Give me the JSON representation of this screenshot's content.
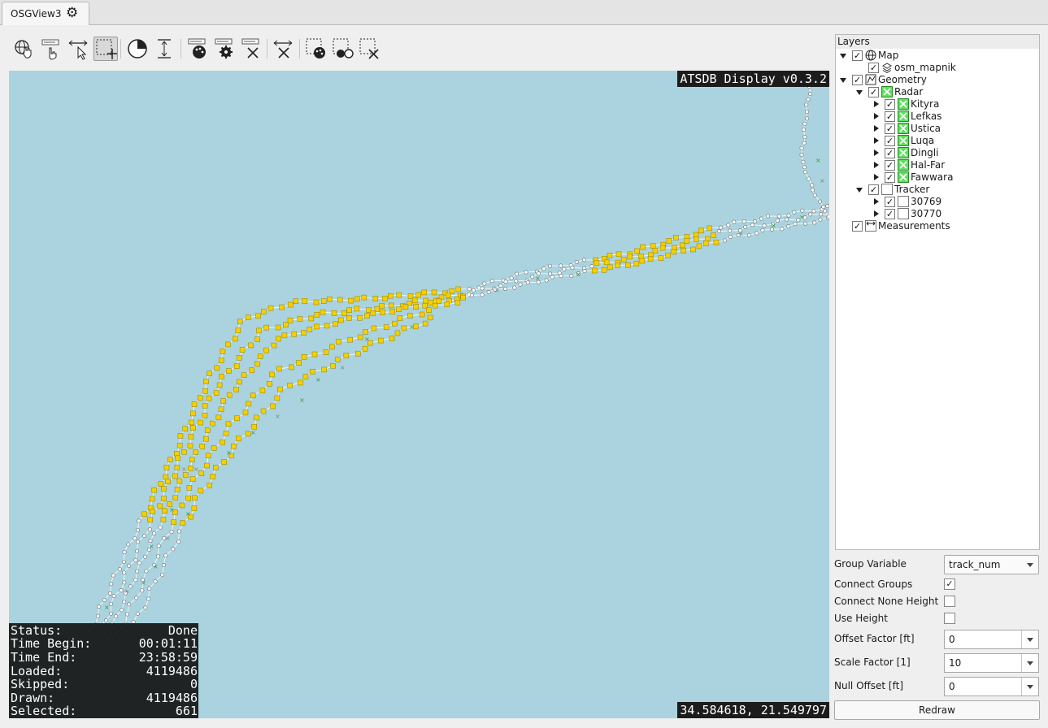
{
  "window": {
    "tab_label": "OSGView3"
  },
  "toolbar": {
    "tools": [
      {
        "name": "navigate-tool-button",
        "icon": "globe-hand-icon",
        "active": false
      },
      {
        "name": "label-tool-button",
        "icon": "label-hand-icon",
        "active": false
      },
      {
        "name": "measure-select-tool-button",
        "icon": "measure-pointer-icon",
        "active": false
      },
      {
        "name": "select-rect-add-tool-button",
        "icon": "selection-add-icon",
        "active": true
      },
      {
        "name": "time-filter-button",
        "icon": "clock-pie-icon",
        "active": false
      },
      {
        "name": "height-filter-button",
        "icon": "height-arrows-icon",
        "active": false
      },
      {
        "name": "label-color-button",
        "icon": "label-palette-icon",
        "active": false
      },
      {
        "name": "label-settings-button",
        "icon": "label-gear-icon",
        "active": false
      },
      {
        "name": "label-clear-button",
        "icon": "label-clear-icon",
        "active": false
      },
      {
        "name": "measure-clear-button",
        "icon": "measure-clear-icon",
        "active": false
      },
      {
        "name": "selection-color-button",
        "icon": "selection-palette-icon",
        "active": false
      },
      {
        "name": "selection-invert-button",
        "icon": "selection-invert-icon",
        "active": false
      },
      {
        "name": "selection-clear-button",
        "icon": "selection-clear-icon",
        "active": false
      }
    ]
  },
  "map": {
    "banner": "ATSDB Display v0.3.2",
    "coordinates": "34.584618, 21.549797",
    "colors": {
      "water": "#aad3df",
      "track_white": "#ffffff",
      "track_selected": "#f5d000",
      "plot_green": "#3a9a4a"
    }
  },
  "stats": [
    {
      "label": "Status:",
      "value": "Done"
    },
    {
      "label": "Time Begin:",
      "value": "00:01:11"
    },
    {
      "label": "Time End:",
      "value": "23:58:59"
    },
    {
      "label": "Loaded:",
      "value": "4119486"
    },
    {
      "label": "Skipped:",
      "value": "0"
    },
    {
      "label": "Drawn:",
      "value": "4119486"
    },
    {
      "label": "Selected:",
      "value": "661"
    }
  ],
  "layers": {
    "title": "Layers",
    "tree": [
      {
        "label": "Map",
        "depth": 0,
        "expander": "down",
        "checked": true,
        "icon": "globe-icon"
      },
      {
        "label": "osm_mapnik",
        "depth": 1,
        "expander": "none",
        "checked": true,
        "icon": "layers-icon"
      },
      {
        "label": "Geometry",
        "depth": 0,
        "expander": "down",
        "checked": true,
        "icon": "geometry-icon"
      },
      {
        "label": "Radar",
        "depth": 1,
        "expander": "down",
        "checked": true,
        "icon": "green-cross-icon"
      },
      {
        "label": "Kityra",
        "depth": 2,
        "expander": "right",
        "checked": true,
        "icon": "green-cross-icon"
      },
      {
        "label": "Lefkas",
        "depth": 2,
        "expander": "right",
        "checked": true,
        "icon": "green-cross-icon"
      },
      {
        "label": "Ustica",
        "depth": 2,
        "expander": "right",
        "checked": true,
        "icon": "green-cross-icon"
      },
      {
        "label": "Luqa",
        "depth": 2,
        "expander": "right",
        "checked": true,
        "icon": "green-cross-icon"
      },
      {
        "label": "Dingli",
        "depth": 2,
        "expander": "right",
        "checked": true,
        "icon": "green-cross-icon"
      },
      {
        "label": "Hal-Far",
        "depth": 2,
        "expander": "right",
        "checked": true,
        "icon": "green-cross-icon"
      },
      {
        "label": "Fawwara",
        "depth": 2,
        "expander": "right",
        "checked": true,
        "icon": "green-cross-icon"
      },
      {
        "label": "Tracker",
        "depth": 1,
        "expander": "down",
        "checked": true,
        "icon": "white-square-icon"
      },
      {
        "label": "30769",
        "depth": 2,
        "expander": "right",
        "checked": true,
        "icon": "white-square-icon"
      },
      {
        "label": "30770",
        "depth": 2,
        "expander": "right",
        "checked": true,
        "icon": "white-square-icon"
      },
      {
        "label": "Measurements",
        "depth": 0,
        "expander": "none",
        "checked": true,
        "icon": "measure-icon"
      }
    ]
  },
  "settings": {
    "group_variable": {
      "label": "Group Variable",
      "value": "track_num"
    },
    "connect_groups": {
      "label": "Connect Groups",
      "checked": true
    },
    "connect_none_height": {
      "label": "Connect None Height",
      "checked": false
    },
    "use_height": {
      "label": "Use Height",
      "checked": false
    },
    "offset_factor": {
      "label": "Offset Factor [ft]",
      "value": "0"
    },
    "scale_factor": {
      "label": "Scale Factor [1]",
      "value": "10"
    },
    "null_offset": {
      "label": "Null Offset [ft]",
      "value": "0"
    },
    "redraw_label": "Redraw"
  }
}
